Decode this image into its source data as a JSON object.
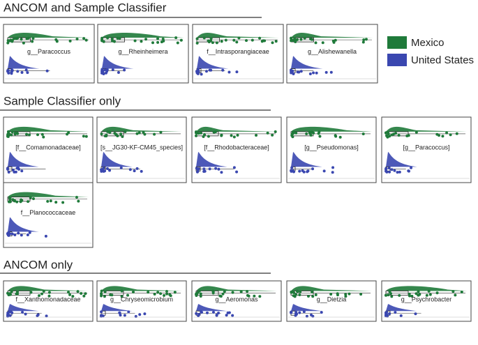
{
  "sections": [
    {
      "title": "ANCOM and Sample Classifier",
      "panels": [
        "g__Paracoccus",
        "g__Rheinheimera",
        "f__Intrasporangiaceae",
        "g__Alishewanella"
      ]
    },
    {
      "title": "Sample Classifier only",
      "panels": [
        "[f__Comamonadaceae]",
        "[s__JG30-KF-CM45_species]",
        "[f__Rhodobacteraceae]",
        "[g__Pseudomonas]",
        "[g__Paracoccus]",
        "f__Planococcaceae"
      ]
    },
    {
      "title": "ANCOM only",
      "panels": [
        "f__Xanthomonadaceae",
        "g__Chryseomicrobium",
        "g__Aeromonas",
        "g__Dietzia",
        "g__Psychrobacter"
      ]
    }
  ],
  "legend": [
    {
      "name": "Mexico",
      "color": "#1f7a3a"
    },
    {
      "name": "United States",
      "color": "#3a47b0"
    }
  ]
}
